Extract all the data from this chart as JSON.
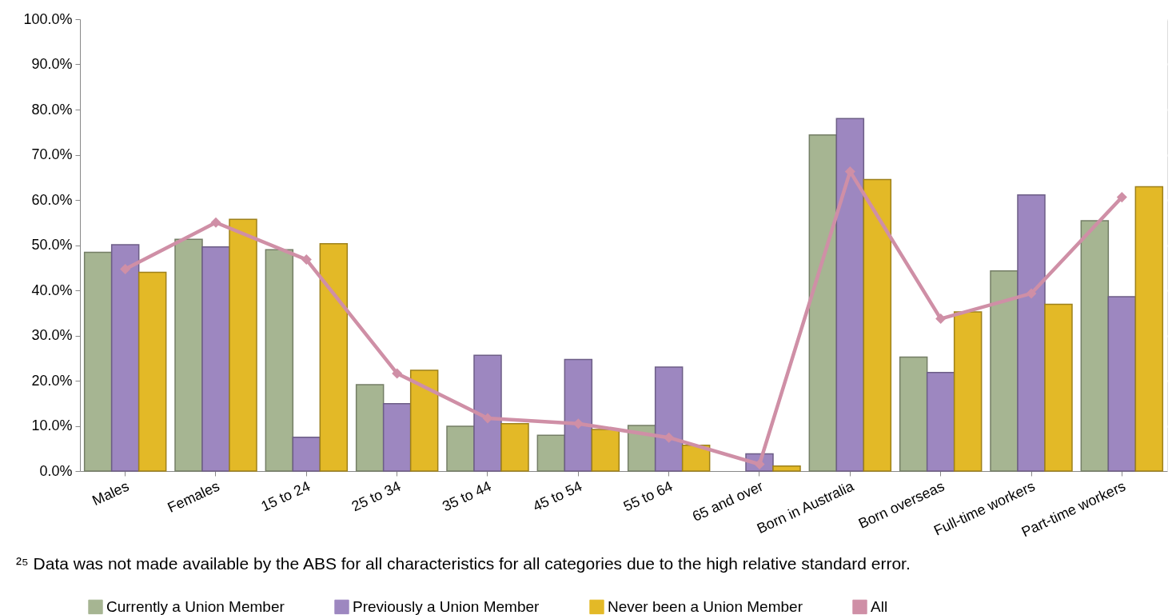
{
  "chart_data": {
    "type": "bar",
    "categories": [
      "Males",
      "Females",
      "15 to 24",
      "25 to 34",
      "35 to 44",
      "45 to 54",
      "55 to 64",
      "65 and over",
      "Born in Australia",
      "Born overseas",
      "Full-time workers",
      "Part-time workers"
    ],
    "series": [
      {
        "name": "Currently a Union Member",
        "color": "#a6b592",
        "values": [
          48.4,
          51.3,
          49.0,
          19.1,
          9.9,
          7.9,
          10.1,
          null,
          74.4,
          25.2,
          44.3,
          55.4
        ]
      },
      {
        "name": "Previously a Union Member",
        "color": "#9d87c0",
        "values": [
          50.1,
          49.6,
          7.5,
          14.9,
          25.6,
          24.7,
          23.0,
          3.8,
          78.0,
          21.8,
          61.1,
          38.6
        ]
      },
      {
        "name": "Never been a Union Member",
        "color": "#e3b927",
        "values": [
          44.0,
          55.7,
          50.3,
          22.3,
          10.5,
          9.2,
          5.7,
          1.1,
          64.5,
          35.2,
          36.9,
          62.9
        ]
      },
      {
        "name": "All",
        "type": "line",
        "color": "#cf8fa6",
        "marker": "diamond",
        "values": [
          44.7,
          55.0,
          46.8,
          21.6,
          11.7,
          10.5,
          7.4,
          1.5,
          66.3,
          33.7,
          39.3,
          60.6
        ]
      }
    ],
    "ylim": [
      0,
      100
    ],
    "yticks": [
      {
        "value": 0,
        "label": "0.0%"
      },
      {
        "value": 10,
        "label": "10.0%"
      },
      {
        "value": 20,
        "label": "20.0%"
      },
      {
        "value": 30,
        "label": "30.0%"
      },
      {
        "value": 40,
        "label": "40.0%"
      },
      {
        "value": 50,
        "label": "50.0%"
      },
      {
        "value": 60,
        "label": "60.0%"
      },
      {
        "value": 70,
        "label": "70.0%"
      },
      {
        "value": 80,
        "label": "80.0%"
      },
      {
        "value": 90,
        "label": "90.0%"
      },
      {
        "value": 100,
        "label": "100.0%"
      }
    ],
    "grid": "y",
    "legend": "bottom",
    "annotations": [
      "²⁵ Data was not made available by the ABS for all characteristics for all categories due to the high relative standard error."
    ]
  }
}
